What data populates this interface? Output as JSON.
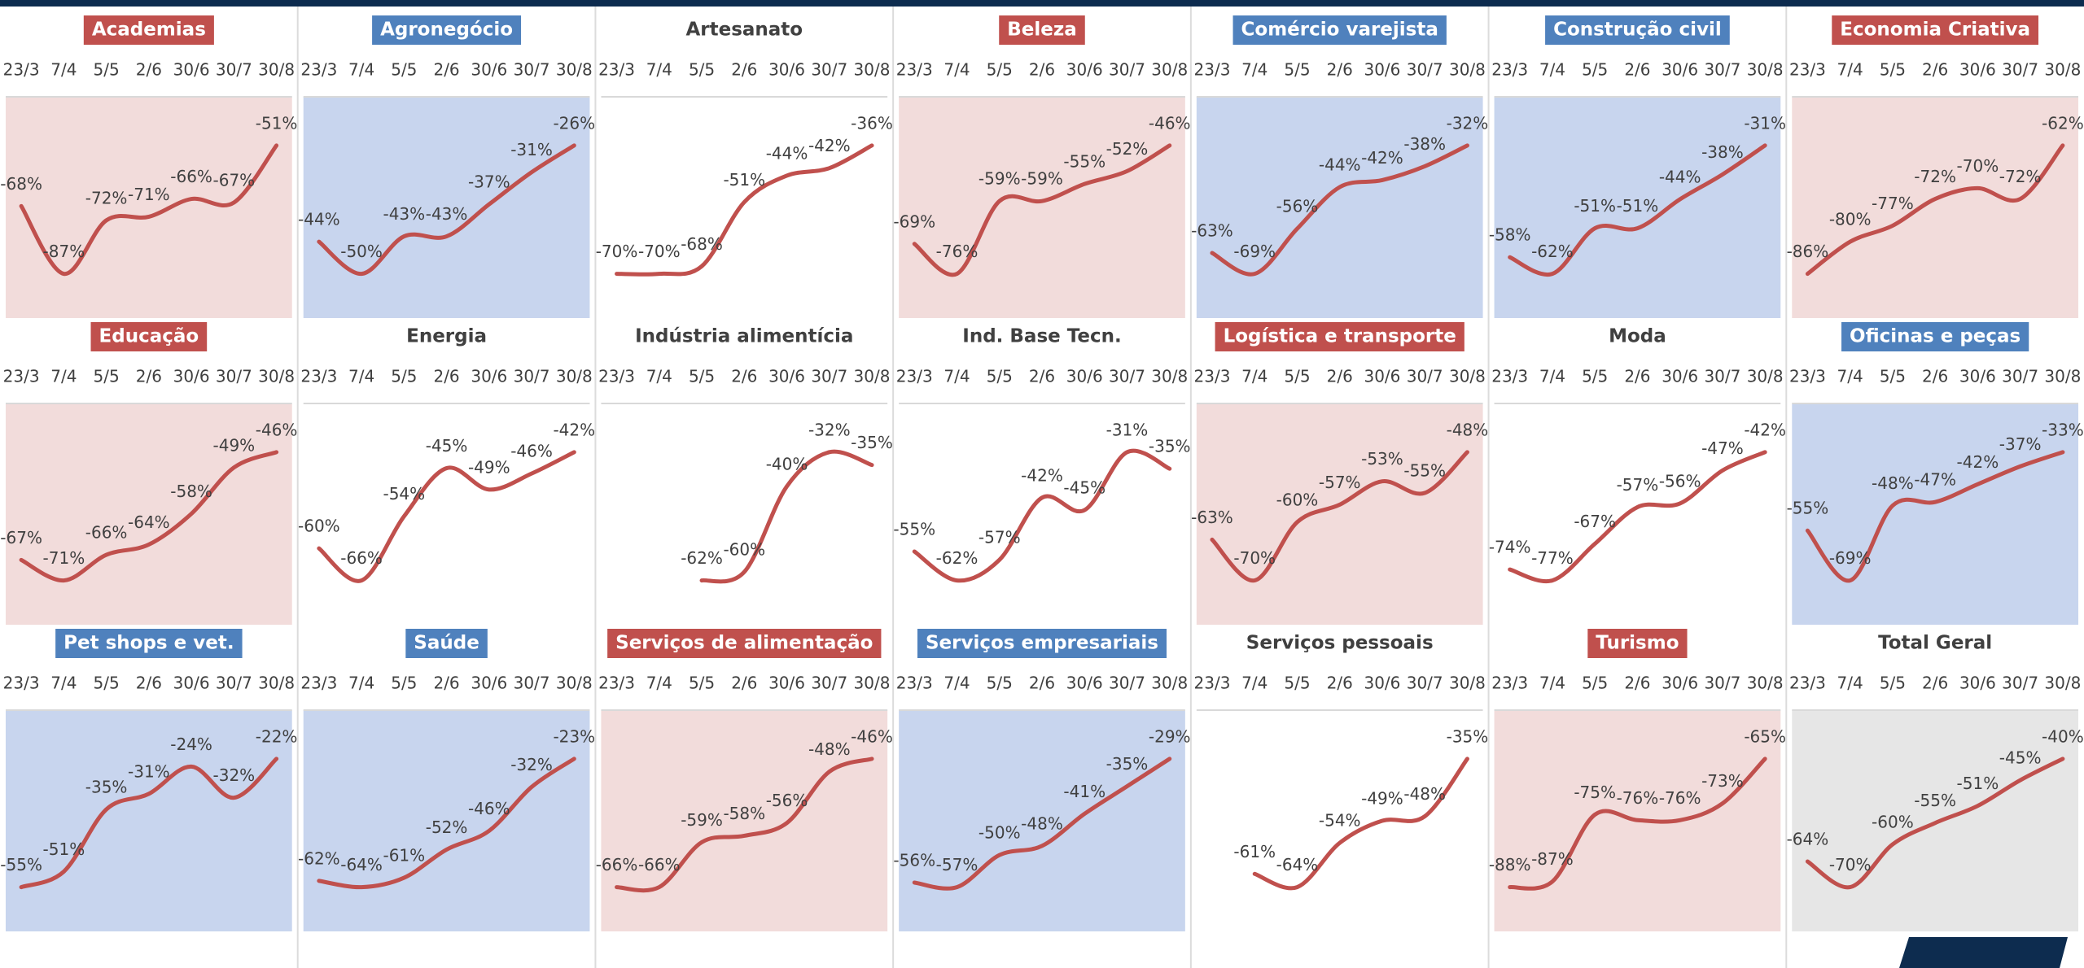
{
  "chart_data": [
    {
      "type": "line",
      "title": "Academias",
      "title_color": "#c0504d",
      "background": "#f2dcdb",
      "color": "#c0504d",
      "categories": [
        "23/3",
        "7/4",
        "5/5",
        "2/6",
        "30/6",
        "30/7",
        "30/8"
      ],
      "values": [
        -68,
        -87,
        -72,
        -71,
        -66,
        -67,
        -51
      ],
      "value_labels": [
        "-68%",
        "-87%",
        "-72%",
        "-71%",
        "-66%",
        "-67%",
        "-51%"
      ]
    },
    {
      "type": "line",
      "title": "Agronegócio",
      "title_color": "#4f81bd",
      "background": "#c8d5ee",
      "color": "#c0504d",
      "categories": [
        "23/3",
        "7/4",
        "5/5",
        "2/6",
        "30/6",
        "30/7",
        "30/8"
      ],
      "values": [
        -44,
        -50,
        -43,
        -43,
        -37,
        -31,
        -26
      ],
      "value_labels": [
        "-44%",
        "-50%",
        "-43%",
        "-43%",
        "-37%",
        "-31%",
        "-26%"
      ]
    },
    {
      "type": "line",
      "title": "Artesanato",
      "background": "#ffffff",
      "color": "#c0504d",
      "categories": [
        "23/3",
        "7/4",
        "5/5",
        "2/6",
        "30/6",
        "30/7",
        "30/8"
      ],
      "values": [
        -70,
        -70,
        -68,
        -51,
        -44,
        -42,
        -36
      ],
      "value_labels": [
        "-70%",
        "-70%",
        "-68%",
        "-51%",
        "-44%",
        "-42%",
        "-36%"
      ]
    },
    {
      "type": "line",
      "title": "Beleza",
      "title_color": "#c0504d",
      "background": "#f2dcdb",
      "color": "#c0504d",
      "categories": [
        "23/3",
        "7/4",
        "5/5",
        "2/6",
        "30/6",
        "30/7",
        "30/8"
      ],
      "values": [
        -69,
        -76,
        -59,
        -59,
        -55,
        -52,
        -46
      ],
      "value_labels": [
        "-69%",
        "-76%",
        "-59%",
        "-59%",
        "-55%",
        "-52%",
        "-46%"
      ]
    },
    {
      "type": "line",
      "title": "Comércio varejista",
      "title_color": "#4f81bd",
      "background": "#c8d5ee",
      "color": "#c0504d",
      "categories": [
        "23/3",
        "7/4",
        "5/5",
        "2/6",
        "30/6",
        "30/7",
        "30/8"
      ],
      "values": [
        -63,
        -69,
        -56,
        -44,
        -42,
        -38,
        -32
      ],
      "value_labels": [
        "-63%",
        "-69%",
        "-56%",
        "-44%",
        "-42%",
        "-38%",
        "-32%"
      ]
    },
    {
      "type": "line",
      "title": "Construção civil",
      "title_color": "#4f81bd",
      "background": "#c8d5ee",
      "color": "#c0504d",
      "categories": [
        "23/3",
        "7/4",
        "5/5",
        "2/6",
        "30/6",
        "30/7",
        "30/8"
      ],
      "values": [
        -58,
        -62,
        -51,
        -51,
        -44,
        -38,
        -31
      ],
      "value_labels": [
        "-58%",
        "-62%",
        "-51%",
        "-51%",
        "-44%",
        "-38%",
        "-31%"
      ]
    },
    {
      "type": "line",
      "title": "Economia Criativa",
      "title_color": "#c0504d",
      "background": "#f2dcdb",
      "color": "#c0504d",
      "categories": [
        "23/3",
        "7/4",
        "5/5",
        "2/6",
        "30/6",
        "30/7",
        "30/8"
      ],
      "values": [
        -86,
        -80,
        -77,
        -72,
        -70,
        -72,
        -62
      ],
      "value_labels": [
        "-86%",
        "-80%",
        "-77%",
        "-72%",
        "-70%",
        "-72%",
        "-62%"
      ]
    },
    {
      "type": "line",
      "title": "Educação",
      "title_color": "#c0504d",
      "background": "#f2dcdb",
      "color": "#c0504d",
      "categories": [
        "23/3",
        "7/4",
        "5/5",
        "2/6",
        "30/6",
        "30/7",
        "30/8"
      ],
      "values": [
        -67,
        -71,
        -66,
        -64,
        -58,
        -49,
        -46
      ],
      "value_labels": [
        "-67%",
        "-71%",
        "-66%",
        "-64%",
        "-58%",
        "-49%",
        "-46%"
      ]
    },
    {
      "type": "line",
      "title": "Energia",
      "background": "#ffffff",
      "color": "#c0504d",
      "categories": [
        "23/3",
        "7/4",
        "5/5",
        "2/6",
        "30/6",
        "30/7",
        "30/8"
      ],
      "values": [
        -60,
        -66,
        -54,
        -45,
        -49,
        -46,
        -42
      ],
      "value_labels": [
        "-60%",
        "-66%",
        "-54%",
        "-45%",
        "-49%",
        "-46%",
        "-42%"
      ]
    },
    {
      "type": "line",
      "title": "Indústria alimentícia",
      "background": "#ffffff",
      "color": "#c0504d",
      "categories": [
        "23/3",
        "7/4",
        "5/5",
        "2/6",
        "30/6",
        "30/7",
        "30/8"
      ],
      "values": [
        null,
        null,
        -62,
        -60,
        -40,
        -32,
        -35
      ],
      "value_labels": [
        null,
        null,
        "-62%",
        "-60%",
        "-40%",
        "-32%",
        "-35%"
      ]
    },
    {
      "type": "line",
      "title": "Ind. Base Tecn.",
      "background": "#ffffff",
      "color": "#c0504d",
      "categories": [
        "23/3",
        "7/4",
        "5/5",
        "2/6",
        "30/6",
        "30/7",
        "30/8"
      ],
      "values": [
        -55,
        -62,
        -57,
        -42,
        -45,
        -31,
        -35
      ],
      "value_labels": [
        "-55%",
        "-62%",
        "-57%",
        "-42%",
        "-45%",
        "-31%",
        "-35%"
      ]
    },
    {
      "type": "line",
      "title": "Logística e transporte",
      "title_color": "#c0504d",
      "background": "#f2dcdb",
      "color": "#c0504d",
      "categories": [
        "23/3",
        "7/4",
        "5/5",
        "2/6",
        "30/6",
        "30/7",
        "30/8"
      ],
      "values": [
        -63,
        -70,
        -60,
        -57,
        -53,
        -55,
        -48
      ],
      "value_labels": [
        "-63%",
        "-70%",
        "-60%",
        "-57%",
        "-53%",
        "-55%",
        "-48%"
      ]
    },
    {
      "type": "line",
      "title": "Moda",
      "background": "#ffffff",
      "color": "#c0504d",
      "categories": [
        "23/3",
        "7/4",
        "5/5",
        "2/6",
        "30/6",
        "30/7",
        "30/8"
      ],
      "values": [
        -74,
        -77,
        -67,
        -57,
        -56,
        -47,
        -42
      ],
      "value_labels": [
        "-74%",
        "-77%",
        "-67%",
        "-57%",
        "-56%",
        "-47%",
        "-42%"
      ]
    },
    {
      "type": "line",
      "title": "Oficinas e peças",
      "title_color": "#4f81bd",
      "background": "#c8d5ee",
      "color": "#c0504d",
      "categories": [
        "23/3",
        "7/4",
        "5/5",
        "2/6",
        "30/6",
        "30/7",
        "30/8"
      ],
      "values": [
        -55,
        -69,
        -48,
        -47,
        -42,
        -37,
        -33
      ],
      "value_labels": [
        "-55%",
        "-69%",
        "-48%",
        "-47%",
        "-42%",
        "-37%",
        "-33%"
      ]
    },
    {
      "type": "line",
      "title": "Pet shops e vet.",
      "title_color": "#4f81bd",
      "background": "#c8d5ee",
      "color": "#c0504d",
      "categories": [
        "23/3",
        "7/4",
        "5/5",
        "2/6",
        "30/6",
        "30/7",
        "30/8"
      ],
      "values": [
        -55,
        -51,
        -35,
        -31,
        -24,
        -32,
        -22
      ],
      "value_labels": [
        "-55%",
        "-51%",
        "-35%",
        "-31%",
        "-24%",
        "-32%",
        "-22%"
      ]
    },
    {
      "type": "line",
      "title": "Saúde",
      "title_color": "#4f81bd",
      "background": "#c8d5ee",
      "color": "#c0504d",
      "categories": [
        "23/3",
        "7/4",
        "5/5",
        "2/6",
        "30/6",
        "30/7",
        "30/8"
      ],
      "values": [
        -62,
        -64,
        -61,
        -52,
        -46,
        -32,
        -23
      ],
      "value_labels": [
        "-62%",
        "-64%",
        "-61%",
        "-52%",
        "-46%",
        "-32%",
        "-23%"
      ]
    },
    {
      "type": "line",
      "title": "Serviços de alimentação",
      "title_color": "#c0504d",
      "background": "#f2dcdb",
      "color": "#c0504d",
      "categories": [
        "23/3",
        "7/4",
        "5/5",
        "2/6",
        "30/6",
        "30/7",
        "30/8"
      ],
      "values": [
        -66,
        -66,
        -59,
        -58,
        -56,
        -48,
        -46
      ],
      "value_labels": [
        "-66%",
        "-66%",
        "-59%",
        "-58%",
        "-56%",
        "-48%",
        "-46%"
      ]
    },
    {
      "type": "line",
      "title": "Serviços empresariais",
      "title_color": "#4f81bd",
      "background": "#c8d5ee",
      "color": "#c0504d",
      "categories": [
        "23/3",
        "7/4",
        "5/5",
        "2/6",
        "30/6",
        "30/7",
        "30/8"
      ],
      "values": [
        -56,
        -57,
        -50,
        -48,
        -41,
        -35,
        -29
      ],
      "value_labels": [
        "-56%",
        "-57%",
        "-50%",
        "-48%",
        "-41%",
        "-35%",
        "-29%"
      ]
    },
    {
      "type": "line",
      "title": "Serviços pessoais",
      "background": "#ffffff",
      "color": "#c0504d",
      "categories": [
        "23/3",
        "7/4",
        "5/5",
        "2/6",
        "30/6",
        "30/7",
        "30/8"
      ],
      "values": [
        null,
        -61,
        -64,
        -54,
        -49,
        -48,
        -35
      ],
      "value_labels": [
        null,
        "-61%",
        "-64%",
        "-54%",
        "-49%",
        "-48%",
        "-35%"
      ]
    },
    {
      "type": "line",
      "title": "Turismo",
      "title_color": "#c0504d",
      "background": "#f2dcdb",
      "color": "#c0504d",
      "categories": [
        "23/3",
        "7/4",
        "5/5",
        "2/6",
        "30/6",
        "30/7",
        "30/8"
      ],
      "values": [
        -88,
        -87,
        -75,
        -76,
        -76,
        -73,
        -65
      ],
      "value_labels": [
        "-88%",
        "-87%",
        "-75%",
        "-76%",
        "-76%",
        "-73%",
        "-65%"
      ]
    },
    {
      "type": "line",
      "title": "Total Geral",
      "background": "#e6e6e6",
      "color": "#c0504d",
      "categories": [
        "23/3",
        "7/4",
        "5/5",
        "2/6",
        "30/6",
        "30/7",
        "30/8"
      ],
      "values": [
        -64,
        -70,
        -60,
        -55,
        -51,
        -45,
        -40
      ],
      "value_labels": [
        "-64%",
        "-70%",
        "-60%",
        "-55%",
        "-51%",
        "-45%",
        "-40%"
      ]
    }
  ]
}
